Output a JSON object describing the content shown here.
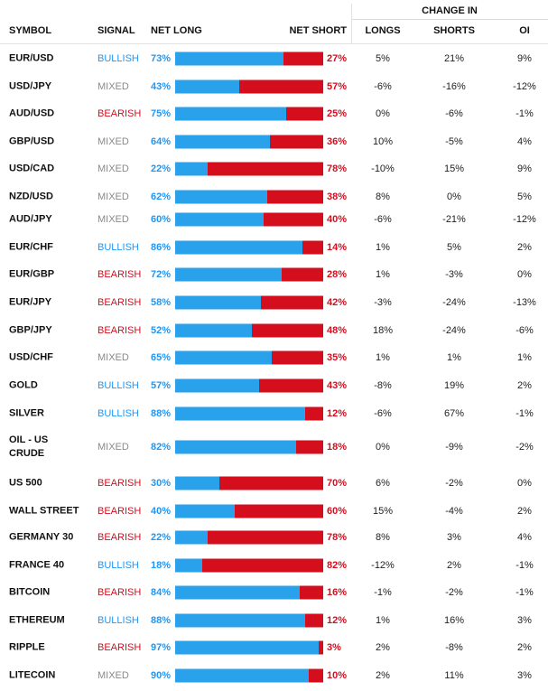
{
  "header": {
    "change_in": "CHANGE IN",
    "symbol": "SYMBOL",
    "signal": "SIGNAL",
    "net_long": "NET LONG",
    "net_short": "NET SHORT",
    "longs": "LONGS",
    "shorts": "SHORTS",
    "oi": "OI"
  },
  "colors": {
    "bullish": "#2196f3",
    "bearish": "#d50e1e",
    "mixed": "#8a8a8a",
    "long_bar": "#2aa1eb",
    "short_bar": "#d50e1e"
  },
  "rows": [
    {
      "symbol": "EUR/USD",
      "signal": "BULLISH",
      "net_long": "73%",
      "net_short": "27%",
      "long_pct": 73,
      "longs": "5%",
      "shorts": "21%",
      "oi": "9%"
    },
    {
      "symbol": "USD/JPY",
      "signal": "MIXED",
      "net_long": "43%",
      "net_short": "57%",
      "long_pct": 43,
      "longs": "-6%",
      "shorts": "-16%",
      "oi": "-12%"
    },
    {
      "symbol": "AUD/USD",
      "signal": "BEARISH",
      "net_long": "75%",
      "net_short": "25%",
      "long_pct": 75,
      "longs": "0%",
      "shorts": "-6%",
      "oi": "-1%"
    },
    {
      "symbol": "GBP/USD",
      "signal": "MIXED",
      "net_long": "64%",
      "net_short": "36%",
      "long_pct": 64,
      "longs": "10%",
      "shorts": "-5%",
      "oi": "4%"
    },
    {
      "symbol": "USD/CAD",
      "signal": "MIXED",
      "net_long": "22%",
      "net_short": "78%",
      "long_pct": 22,
      "longs": "-10%",
      "shorts": "15%",
      "oi": "9%"
    },
    {
      "symbol": "NZD/USD",
      "signal": "MIXED",
      "net_long": "62%",
      "net_short": "38%",
      "long_pct": 62,
      "longs": "8%",
      "shorts": "0%",
      "oi": "5%"
    },
    {
      "symbol": "AUD/JPY",
      "signal": "MIXED",
      "net_long": "60%",
      "net_short": "40%",
      "long_pct": 60,
      "longs": "-6%",
      "shorts": "-21%",
      "oi": "-12%"
    },
    {
      "symbol": "EUR/CHF",
      "signal": "BULLISH",
      "net_long": "86%",
      "net_short": "14%",
      "long_pct": 86,
      "longs": "1%",
      "shorts": "5%",
      "oi": "2%"
    },
    {
      "symbol": "EUR/GBP",
      "signal": "BEARISH",
      "net_long": "72%",
      "net_short": "28%",
      "long_pct": 72,
      "longs": "1%",
      "shorts": "-3%",
      "oi": "0%"
    },
    {
      "symbol": "EUR/JPY",
      "signal": "BEARISH",
      "net_long": "58%",
      "net_short": "42%",
      "long_pct": 58,
      "longs": "-3%",
      "shorts": "-24%",
      "oi": "-13%"
    },
    {
      "symbol": "GBP/JPY",
      "signal": "BEARISH",
      "net_long": "52%",
      "net_short": "48%",
      "long_pct": 52,
      "longs": "18%",
      "shorts": "-24%",
      "oi": "-6%"
    },
    {
      "symbol": "USD/CHF",
      "signal": "MIXED",
      "net_long": "65%",
      "net_short": "35%",
      "long_pct": 65,
      "longs": "1%",
      "shorts": "1%",
      "oi": "1%"
    },
    {
      "symbol": "GOLD",
      "signal": "BULLISH",
      "net_long": "57%",
      "net_short": "43%",
      "long_pct": 57,
      "longs": "-8%",
      "shorts": "19%",
      "oi": "2%"
    },
    {
      "symbol": "SILVER",
      "signal": "BULLISH",
      "net_long": "88%",
      "net_short": "12%",
      "long_pct": 88,
      "longs": "-6%",
      "shorts": "67%",
      "oi": "-1%"
    },
    {
      "symbol": "OIL - US CRUDE",
      "signal": "MIXED",
      "net_long": "82%",
      "net_short": "18%",
      "long_pct": 82,
      "longs": "0%",
      "shorts": "-9%",
      "oi": "-2%"
    },
    {
      "symbol": "US 500",
      "signal": "BEARISH",
      "net_long": "30%",
      "net_short": "70%",
      "long_pct": 30,
      "longs": "6%",
      "shorts": "-2%",
      "oi": "0%"
    },
    {
      "symbol": "WALL STREET",
      "signal": "BEARISH",
      "net_long": "40%",
      "net_short": "60%",
      "long_pct": 40,
      "longs": "15%",
      "shorts": "-4%",
      "oi": "2%"
    },
    {
      "symbol": "GERMANY 30",
      "signal": "BEARISH",
      "net_long": "22%",
      "net_short": "78%",
      "long_pct": 22,
      "longs": "8%",
      "shorts": "3%",
      "oi": "4%"
    },
    {
      "symbol": "FRANCE 40",
      "signal": "BULLISH",
      "net_long": "18%",
      "net_short": "82%",
      "long_pct": 18,
      "longs": "-12%",
      "shorts": "2%",
      "oi": "-1%"
    },
    {
      "symbol": "BITCOIN",
      "signal": "BEARISH",
      "net_long": "84%",
      "net_short": "16%",
      "long_pct": 84,
      "longs": "-1%",
      "shorts": "-2%",
      "oi": "-1%"
    },
    {
      "symbol": "ETHEREUM",
      "signal": "BULLISH",
      "net_long": "88%",
      "net_short": "12%",
      "long_pct": 88,
      "longs": "1%",
      "shorts": "16%",
      "oi": "3%"
    },
    {
      "symbol": "RIPPLE",
      "signal": "BEARISH",
      "net_long": "97%",
      "net_short": "3%",
      "long_pct": 97,
      "longs": "2%",
      "shorts": "-8%",
      "oi": "2%"
    },
    {
      "symbol": "LITECOIN",
      "signal": "MIXED",
      "net_long": "90%",
      "net_short": "10%",
      "long_pct": 90,
      "longs": "2%",
      "shorts": "11%",
      "oi": "3%"
    }
  ]
}
